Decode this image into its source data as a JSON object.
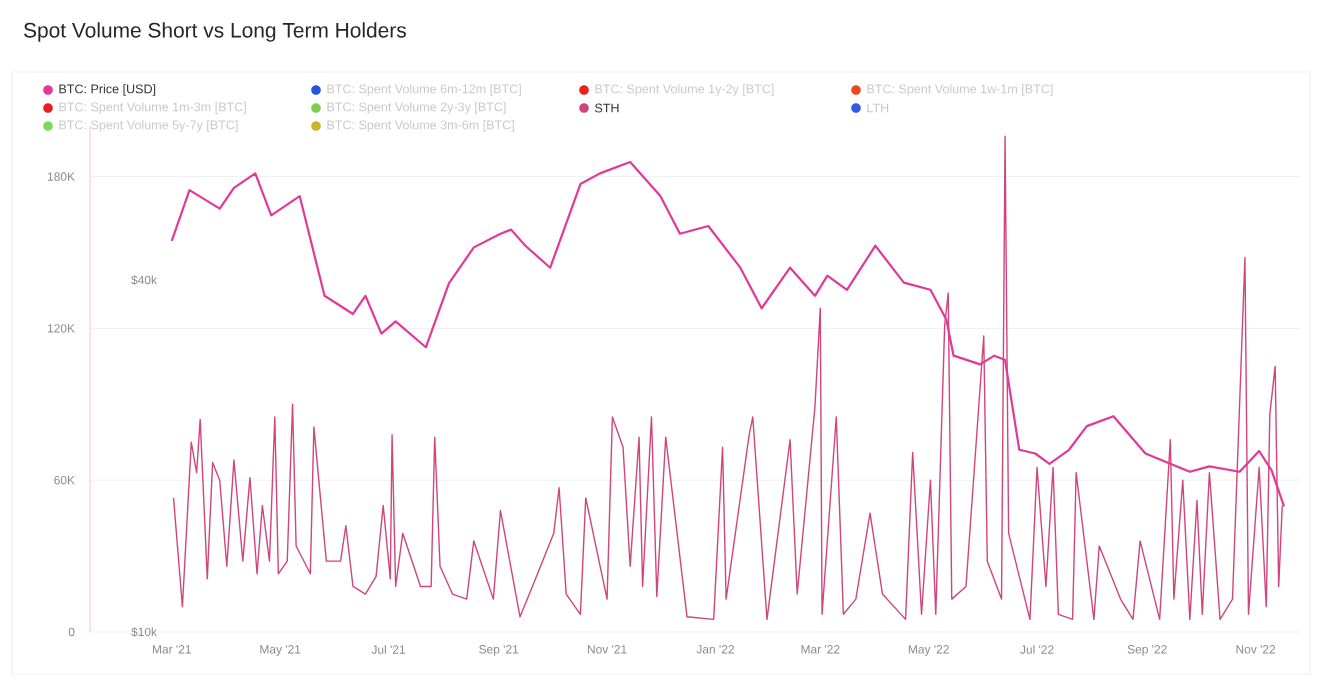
{
  "chart_data": {
    "type": "line",
    "title": "Spot Volume Short vs Long Term Holders",
    "xlim": [
      "2021-01-14",
      "2022-11-26"
    ],
    "xticks": [
      {
        "value": "2021-03-01",
        "label": "Mar '21"
      },
      {
        "value": "2021-05-01",
        "label": "May '21"
      },
      {
        "value": "2021-07-01",
        "label": "Jul '21"
      },
      {
        "value": "2021-09-01",
        "label": "Sep '21"
      },
      {
        "value": "2021-11-01",
        "label": "Nov '21"
      },
      {
        "value": "2022-01-01",
        "label": "Jan '22"
      },
      {
        "value": "2022-03-01",
        "label": "Mar '22"
      },
      {
        "value": "2022-05-01",
        "label": "May '22"
      },
      {
        "value": "2022-07-01",
        "label": "Jul '22"
      },
      {
        "value": "2022-09-01",
        "label": "Sep '22"
      },
      {
        "value": "2022-11-01",
        "label": "Nov '22"
      }
    ],
    "ylim": [
      0,
      200000
    ],
    "yticks": [
      {
        "value": 0,
        "label": "0"
      },
      {
        "value": 60000,
        "label": "60K"
      },
      {
        "value": 120000,
        "label": "120K"
      },
      {
        "value": 180000,
        "label": "180K"
      }
    ],
    "y2lim": [
      10000,
      73400
    ],
    "y2ticks": [
      {
        "value": 10000,
        "label": "$10k"
      },
      {
        "value": 40000,
        "label": "$40k"
      }
    ],
    "log": "y2",
    "grid": "y",
    "legend": "top",
    "line_style": "solid",
    "marker": "none",
    "series": [
      {
        "name": "BTC: Price [USD]",
        "color": "#e0399a",
        "axis": "y2",
        "x": [
          "2021-03-01",
          "2021-03-11",
          "2021-03-28",
          "2021-04-05",
          "2021-04-17",
          "2021-04-26",
          "2021-05-12",
          "2021-05-26",
          "2021-06-11",
          "2021-06-18",
          "2021-06-27",
          "2021-07-05",
          "2021-07-22",
          "2021-08-04",
          "2021-08-18",
          "2021-09-02",
          "2021-09-08",
          "2021-09-16",
          "2021-09-30",
          "2021-10-17",
          "2021-10-28",
          "2021-11-14",
          "2021-12-01",
          "2021-12-12",
          "2021-12-28",
          "2022-01-15",
          "2022-01-27",
          "2022-02-12",
          "2022-02-26",
          "2022-03-05",
          "2022-03-16",
          "2022-04-01",
          "2022-04-17",
          "2022-05-02",
          "2022-05-11",
          "2022-05-15",
          "2022-05-30",
          "2022-06-07",
          "2022-06-13",
          "2022-06-21",
          "2022-06-30",
          "2022-07-08",
          "2022-07-19",
          "2022-07-29",
          "2022-08-13",
          "2022-08-31",
          "2022-09-14",
          "2022-09-25",
          "2022-10-06",
          "2022-10-23",
          "2022-11-03",
          "2022-11-10",
          "2022-11-17"
        ],
        "values": [
          46700,
          57000,
          53000,
          57500,
          60900,
          51600,
          55700,
          37600,
          35000,
          37600,
          32400,
          34000,
          30700,
          39500,
          45500,
          48000,
          48800,
          45800,
          42000,
          58400,
          60900,
          63700,
          55700,
          48000,
          49500,
          42000,
          35800,
          42000,
          37600,
          40700,
          38500,
          45800,
          39600,
          38500,
          34200,
          29700,
          28700,
          29700,
          29200,
          20500,
          20200,
          19400,
          20500,
          22500,
          23400,
          20200,
          19400,
          18800,
          19200,
          18800,
          20400,
          18900,
          16400
        ]
      },
      {
        "name": "BTC: Spent Volume 6m-12m [BTC]",
        "color": "#2255dd"
      },
      {
        "name": "BTC: Spent Volume 1y-2y [BTC]",
        "color": "#e8211d"
      },
      {
        "name": "BTC: Spent Volume 1w-1m [BTC]",
        "color": "#f0461c"
      },
      {
        "name": "BTC: Spent Volume 1m-3m [BTC]",
        "color": "#e8201d"
      },
      {
        "name": "BTC: Spent Volume 2y-3y [BTC]",
        "color": "#7ccf4a"
      },
      {
        "name": "STH",
        "color": "#d1457b",
        "x": [
          "2021-03-02",
          "2021-03-07",
          "2021-03-12",
          "2021-03-15",
          "2021-03-17",
          "2021-03-21",
          "2021-03-24",
          "2021-03-28",
          "2021-04-01",
          "2021-04-05",
          "2021-04-10",
          "2021-04-14",
          "2021-04-18",
          "2021-04-21",
          "2021-04-25",
          "2021-04-28",
          "2021-04-30",
          "2021-05-05",
          "2021-05-08",
          "2021-05-10",
          "2021-05-18",
          "2021-05-20",
          "2021-05-27",
          "2021-06-04",
          "2021-06-07",
          "2021-06-11",
          "2021-06-18",
          "2021-06-24",
          "2021-06-28",
          "2021-07-02",
          "2021-07-03",
          "2021-07-05",
          "2021-07-09",
          "2021-07-19",
          "2021-07-25",
          "2021-07-27",
          "2021-07-30",
          "2021-08-06",
          "2021-08-14",
          "2021-08-18",
          "2021-08-29",
          "2021-09-02",
          "2021-09-13",
          "2021-09-20",
          "2021-10-02",
          "2021-10-05",
          "2021-10-09",
          "2021-10-17",
          "2021-10-20",
          "2021-11-01",
          "2021-11-04",
          "2021-11-10",
          "2021-11-14",
          "2021-11-19",
          "2021-11-21",
          "2021-11-26",
          "2021-11-29",
          "2021-12-04",
          "2021-12-16",
          "2021-12-31",
          "2022-01-05",
          "2022-01-07",
          "2022-01-20",
          "2022-01-22",
          "2022-01-30",
          "2022-02-12",
          "2022-02-16",
          "2022-02-26",
          "2022-03-01",
          "2022-03-02",
          "2022-03-10",
          "2022-03-14",
          "2022-03-21",
          "2022-03-29",
          "2022-04-05",
          "2022-04-18",
          "2022-04-22",
          "2022-04-27",
          "2022-05-02",
          "2022-05-05",
          "2022-05-10",
          "2022-05-12",
          "2022-05-14",
          "2022-05-22",
          "2022-06-01",
          "2022-06-03",
          "2022-06-11",
          "2022-06-13",
          "2022-06-15",
          "2022-06-27",
          "2022-07-01",
          "2022-07-06",
          "2022-07-10",
          "2022-07-13",
          "2022-07-21",
          "2022-07-23",
          "2022-08-02",
          "2022-08-05",
          "2022-08-17",
          "2022-08-24",
          "2022-08-28",
          "2022-09-08",
          "2022-09-14",
          "2022-09-16",
          "2022-09-21",
          "2022-09-25",
          "2022-09-29",
          "2022-10-02",
          "2022-10-06",
          "2022-10-12",
          "2022-10-19",
          "2022-10-26",
          "2022-10-28",
          "2022-11-03",
          "2022-11-07",
          "2022-11-09",
          "2022-11-12",
          "2022-11-14",
          "2022-11-16"
        ],
        "values": [
          53000,
          10000,
          75000,
          63000,
          84000,
          21000,
          67000,
          60000,
          26000,
          68000,
          28000,
          61000,
          23000,
          50000,
          28000,
          85000,
          23000,
          28000,
          90000,
          34000,
          23000,
          81000,
          28000,
          28000,
          42000,
          18000,
          15000,
          22000,
          50000,
          21000,
          78000,
          18000,
          39000,
          18000,
          18000,
          77000,
          26000,
          15000,
          13000,
          36000,
          13000,
          48000,
          6000,
          18000,
          39000,
          57000,
          15000,
          7000,
          53000,
          13000,
          85000,
          73000,
          26000,
          77000,
          18000,
          85000,
          14000,
          77000,
          6000,
          5000,
          73000,
          13000,
          78000,
          85000,
          5000,
          76000,
          15000,
          89000,
          128000,
          7000,
          85000,
          7000,
          13000,
          47000,
          15000,
          5000,
          71000,
          7000,
          60000,
          7000,
          121000,
          134000,
          13000,
          18000,
          117000,
          28000,
          13000,
          196000,
          39000,
          5000,
          65000,
          18000,
          65000,
          7000,
          5000,
          63000,
          5000,
          34000,
          13000,
          5000,
          36000,
          5000,
          76000,
          13000,
          60000,
          5000,
          52000,
          7000,
          63000,
          5000,
          13000,
          148000,
          7000,
          65000,
          10000,
          86000,
          105000,
          18000,
          50000
        ]
      },
      {
        "name": "LTH",
        "color": "#2d5de0"
      },
      {
        "name": "BTC: Spent Volume 5y-7y [BTC]",
        "color": "#7ed957"
      },
      {
        "name": "BTC: Spent Volume 3m-6m [BTC]",
        "color": "#c8b52a"
      }
    ]
  }
}
